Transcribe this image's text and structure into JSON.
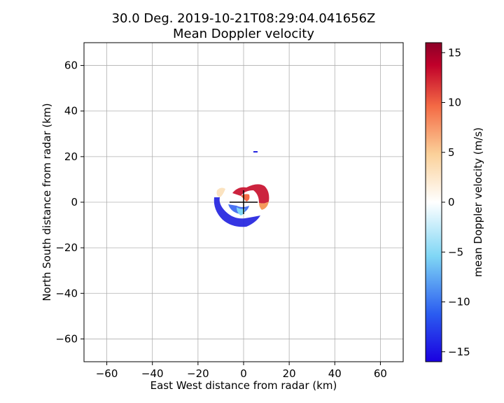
{
  "chart_data": {
    "type": "heatmap",
    "title": "30.0 Deg. 2019-10-21T08:29:04.041656Z",
    "subtitle": "Mean Doppler velocity",
    "xlabel": "East West distance from radar (km)",
    "ylabel": "North South distance from radar (km)",
    "xlim": [
      -70,
      70
    ],
    "ylim": [
      -70,
      70
    ],
    "xticks": [
      -60,
      -40,
      -20,
      0,
      20,
      40,
      60
    ],
    "yticks": [
      -60,
      -40,
      -20,
      0,
      20,
      40,
      60
    ],
    "grid": true,
    "colorbar": {
      "label": "mean Doppler velocity (m/s)",
      "range": [
        -16,
        16
      ],
      "ticks": [
        -15,
        -10,
        -5,
        0,
        5,
        10,
        15
      ],
      "colormap": [
        "#1a00e0",
        "#2b5cf0",
        "#7fd6f5",
        "#ffffff",
        "#fbd19a",
        "#f46b45",
        "#c0002a",
        "#8c0028"
      ]
    },
    "features": [
      {
        "x": 0,
        "y": 0,
        "kind": "radar-location-cross"
      }
    ]
  },
  "colors": {
    "receding": "#c8102e",
    "approaching": "#2424e0",
    "grid": "#b0b0b0"
  }
}
